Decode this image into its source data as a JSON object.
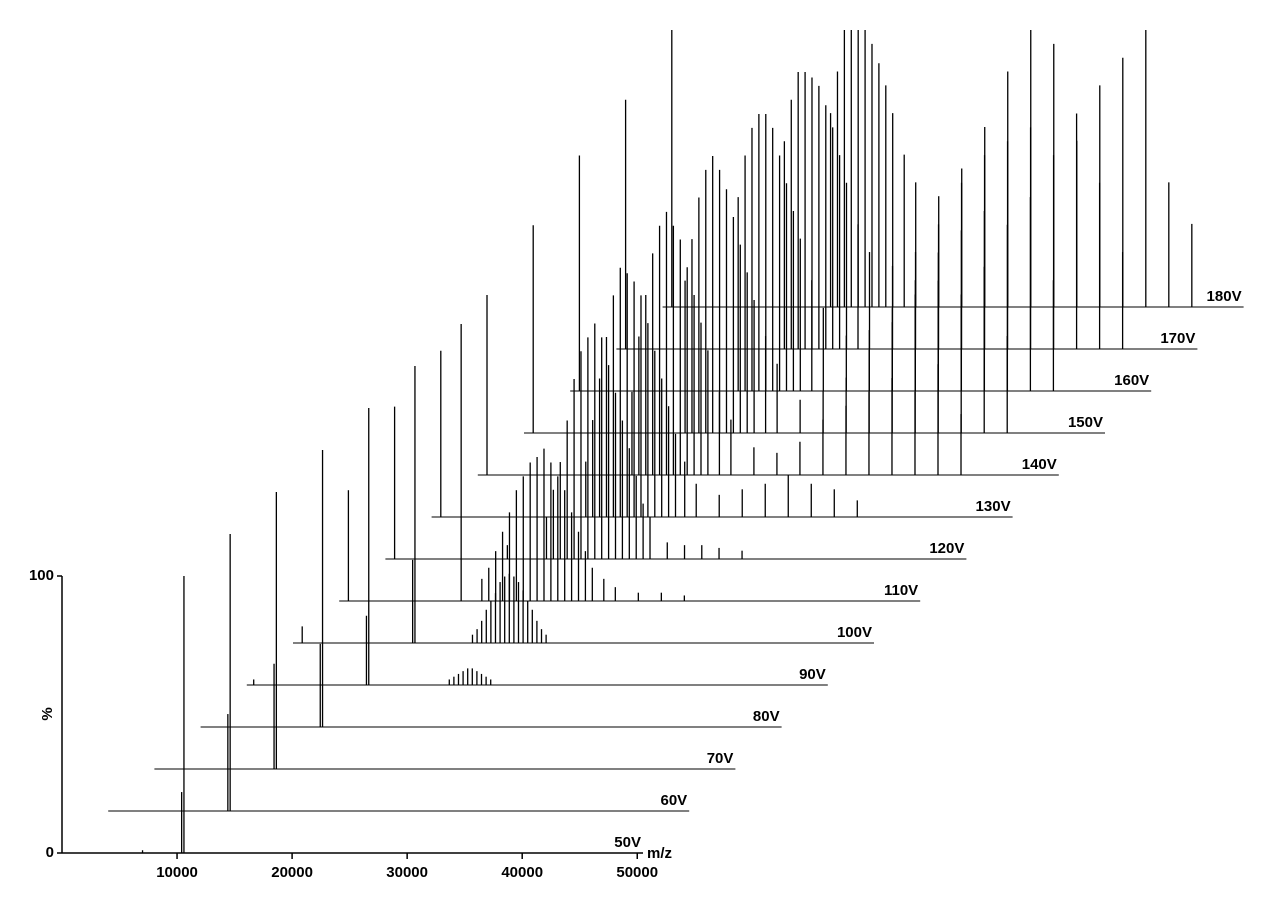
{
  "chart_data": {
    "type": "waterfall",
    "x_label": "m/z",
    "y_label": "%",
    "color": "#000000",
    "xlim": [
      0,
      50500
    ],
    "ylim": [
      0,
      100
    ],
    "xticks": [
      10000,
      20000,
      30000,
      40000,
      50000
    ],
    "yticks": [
      0,
      100
    ],
    "series": [
      {
        "name": "50V",
        "x": [
          7000,
          10400,
          10600
        ],
        "values": [
          1,
          22,
          100
        ]
      },
      {
        "name": "60V",
        "x": [
          10400,
          10600
        ],
        "values": [
          35,
          100
        ]
      },
      {
        "name": "70V",
        "x": [
          10400,
          10600
        ],
        "values": [
          38,
          100
        ]
      },
      {
        "name": "80V",
        "x": [
          10400,
          10600
        ],
        "values": [
          30,
          100
        ]
      },
      {
        "name": "90V",
        "x": [
          600,
          10400,
          10600,
          17600,
          18000,
          18400,
          18800,
          19200,
          19600,
          20000,
          20400,
          20800,
          21200
        ],
        "values": [
          2,
          25,
          100,
          2,
          3,
          4,
          5,
          6,
          6,
          5,
          4,
          3,
          2
        ]
      },
      {
        "name": "100V",
        "x": [
          800,
          10400,
          10600,
          15600,
          16000,
          16400,
          16800,
          17200,
          17600,
          18000,
          18400,
          18800,
          19200,
          19600,
          20000,
          20400,
          20800,
          21200,
          21600,
          22000
        ],
        "values": [
          6,
          30,
          100,
          3,
          5,
          8,
          12,
          15,
          18,
          22,
          24,
          25,
          24,
          22,
          19,
          15,
          12,
          8,
          5,
          3
        ]
      },
      {
        "name": "110V",
        "x": [
          800,
          10600,
          12400,
          13000,
          13600,
          14200,
          14800,
          15400,
          16000,
          16600,
          17200,
          17800,
          18400,
          19000,
          19600,
          20200,
          20800,
          21400,
          22000,
          23000,
          24000,
          26000,
          28000,
          30000
        ],
        "values": [
          40,
          100,
          8,
          12,
          18,
          25,
          32,
          40,
          45,
          50,
          52,
          55,
          50,
          45,
          40,
          32,
          25,
          18,
          12,
          8,
          5,
          3,
          3,
          2
        ]
      },
      {
        "name": "120V",
        "x": [
          800,
          10600,
          14000,
          14600,
          15200,
          15800,
          16400,
          17000,
          17600,
          18200,
          18800,
          19400,
          20000,
          20600,
          21200,
          21800,
          22400,
          23000,
          24500,
          26000,
          27500,
          29000,
          31000
        ],
        "values": [
          55,
          5,
          15,
          25,
          35,
          50,
          65,
          75,
          80,
          85,
          80,
          70,
          60,
          50,
          40,
          30,
          20,
          15,
          6,
          5,
          5,
          4,
          3
        ]
      },
      {
        "name": "130V",
        "x": [
          800,
          13400,
          14000,
          14600,
          15200,
          15800,
          16400,
          17000,
          17600,
          18200,
          18800,
          19400,
          20000,
          20600,
          21200,
          22000,
          23000,
          25000,
          27000,
          29000,
          31000,
          33000,
          35000,
          37000
        ],
        "values": [
          60,
          20,
          35,
          50,
          65,
          80,
          90,
          88,
          85,
          80,
          70,
          60,
          50,
          40,
          30,
          20,
          12,
          8,
          10,
          12,
          15,
          12,
          10,
          6
        ]
      },
      {
        "name": "140V",
        "x": [
          800,
          13400,
          14000,
          14600,
          15200,
          15800,
          16400,
          17000,
          17600,
          18200,
          18800,
          19400,
          20000,
          21000,
          22000,
          24000,
          26000,
          28000,
          30000,
          32000,
          34000,
          36000,
          38000,
          40000,
          42000
        ],
        "values": [
          65,
          30,
          50,
          65,
          80,
          90,
          95,
          90,
          85,
          75,
          65,
          55,
          45,
          30,
          20,
          10,
          8,
          12,
          20,
          25,
          30,
          35,
          30,
          40,
          22
        ]
      },
      {
        "name": "150V",
        "x": [
          800,
          14000,
          14600,
          15200,
          15800,
          16400,
          17000,
          17600,
          18200,
          18800,
          19400,
          20000,
          21000,
          22000,
          24000,
          26000,
          28000,
          30000,
          32000,
          34000,
          36000,
          38000,
          40000,
          42000
        ],
        "values": [
          75,
          55,
          70,
          85,
          95,
          100,
          95,
          88,
          78,
          68,
          58,
          48,
          35,
          25,
          12,
          15,
          20,
          30,
          40,
          50,
          55,
          50,
          60,
          35
        ]
      },
      {
        "name": "160V",
        "x": [
          800,
          14600,
          15200,
          15800,
          16400,
          17000,
          17600,
          18200,
          18800,
          19400,
          20000,
          21000,
          22000,
          24000,
          26000,
          28000,
          30000,
          32000,
          34000,
          36000,
          38000,
          40000,
          42000
        ],
        "values": [
          85,
          70,
          85,
          95,
          100,
          100,
          95,
          85,
          75,
          65,
          55,
          40,
          30,
          20,
          22,
          30,
          40,
          50,
          58,
          65,
          60,
          70,
          40
        ]
      },
      {
        "name": "170V",
        "x": [
          800,
          14600,
          15200,
          15800,
          16400,
          17000,
          17600,
          18200,
          18800,
          19400,
          20000,
          21000,
          22000,
          24000,
          26000,
          28000,
          30000,
          32000,
          34000,
          36000,
          38000,
          40000,
          42000,
          44000
        ],
        "values": [
          90,
          75,
          90,
          100,
          100,
          98,
          95,
          88,
          80,
          70,
          60,
          45,
          35,
          30,
          35,
          45,
          60,
          70,
          75,
          80,
          70,
          85,
          60,
          35
        ]
      },
      {
        "name": "180V",
        "x": [
          800,
          14600,
          15200,
          15800,
          16400,
          17000,
          17600,
          18200,
          18800,
          19400,
          20000,
          21000,
          22000,
          24000,
          26000,
          28000,
          30000,
          32000,
          34000,
          36000,
          38000,
          40000,
          42000,
          44000,
          46000
        ],
        "values": [
          100,
          70,
          85,
          100,
          100,
          100,
          100,
          95,
          88,
          80,
          70,
          55,
          45,
          40,
          50,
          65,
          85,
          100,
          95,
          60,
          80,
          90,
          100,
          45,
          30
        ]
      }
    ]
  }
}
